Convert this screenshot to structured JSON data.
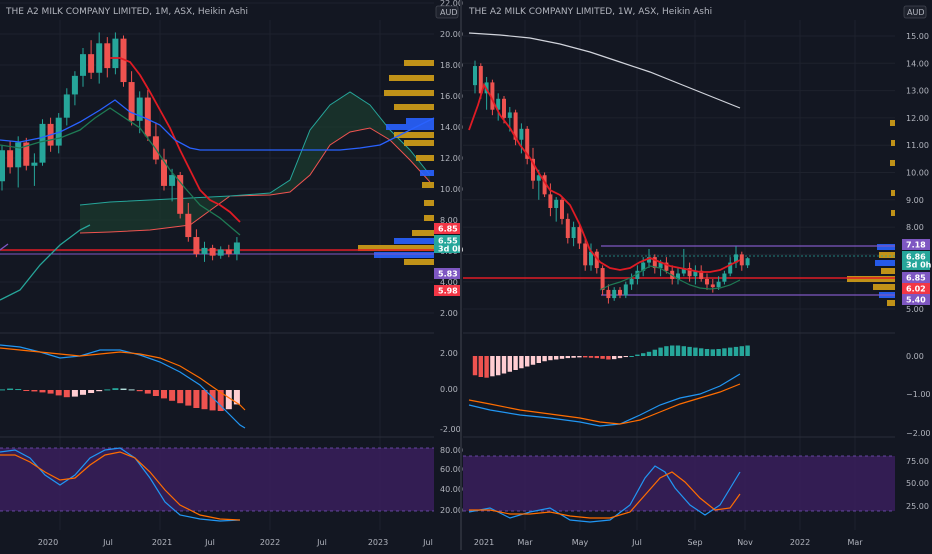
{
  "colors": {
    "bg": "#131722",
    "grid": "#1e222d",
    "axis_text": "#b2b5be",
    "bull": "#26a69a",
    "bear": "#ef5350",
    "red_line": "#e01b24",
    "purple": "#7e57c2",
    "gold": "#d4a017",
    "blue_vp": "#2962ff",
    "osc_band": "#3a1e5c",
    "macd": "#2196f3",
    "signal": "#ff6d00"
  },
  "left": {
    "title": "THE A2 MILK COMPANY LIMITED, 1M, ASX, Heikin Ashi",
    "currency": "AUD",
    "price_ticks": [
      "22.00",
      "20.00",
      "18.00",
      "16.00",
      "14.00",
      "12.00",
      "10.00",
      "8.00",
      "6.00",
      "4.00",
      "2.00"
    ],
    "price_ticks_v": [
      22,
      20,
      18,
      16,
      14,
      12,
      10,
      8,
      6,
      4,
      2
    ],
    "badges": [
      {
        "label": "6.85",
        "value": 6.85,
        "color": "#f23645",
        "sub": ""
      },
      {
        "label": "6.55",
        "value": 6.55,
        "color": "#26a69a",
        "sub": "3d 0h"
      },
      {
        "label": "5.98",
        "value": 5.98,
        "color": "#f23645",
        "sub": ""
      },
      {
        "label": "5.83",
        "value": 5.83,
        "color": "#7e57c2",
        "sub": ""
      }
    ],
    "macd_ticks": [
      "2.00",
      "0.00",
      "-2.00"
    ],
    "rsi_ticks": [
      "80.00",
      "60.00",
      "40.00",
      "20.00"
    ],
    "time_labels": [
      "2020",
      "Jul",
      "2021",
      "Jul",
      "2022",
      "Jul",
      "2023",
      "Jul"
    ]
  },
  "right": {
    "title": "THE A2 MILK COMPANY LIMITED, 1W, ASX, Heikin Ashi",
    "currency": "AUD",
    "price_ticks": [
      "15.00",
      "14.00",
      "13.00",
      "12.00",
      "11.00",
      "10.00",
      "9.00",
      "8.00",
      "7.00",
      "6.00",
      "5.00"
    ],
    "price_ticks_v": [
      15,
      14,
      13,
      12,
      11,
      10,
      9,
      8,
      7,
      6,
      5
    ],
    "badges": [
      {
        "label": "7.18",
        "value": 7.18,
        "color": "#7e57c2",
        "sub": ""
      },
      {
        "label": "6.86",
        "value": 6.86,
        "color": "#26a69a",
        "sub": "3d 0h"
      },
      {
        "label": "6.85",
        "value": 6.85,
        "color": "#7e57c2",
        "sub": ""
      },
      {
        "label": "6.02",
        "value": 6.02,
        "color": "#f23645",
        "sub": ""
      },
      {
        "label": "5.40",
        "value": 5.4,
        "color": "#7e57c2",
        "sub": ""
      }
    ],
    "macd_ticks": [
      "0.00",
      "−1.00",
      "−2.00"
    ],
    "rsi_ticks": [
      "75.00",
      "50.00",
      "25.00"
    ],
    "time_labels": [
      "2021",
      "Mar",
      "May",
      "Jul",
      "Sep",
      "Nov",
      "2022",
      "Mar"
    ]
  },
  "left_candles": [
    [
      10.5,
      12.8,
      9.9,
      12.5
    ],
    [
      12.5,
      13.1,
      11.0,
      11.4
    ],
    [
      11.4,
      13.4,
      10.1,
      13.0
    ],
    [
      13.0,
      13.3,
      11.2,
      11.5
    ],
    [
      11.5,
      12.3,
      10.2,
      11.7
    ],
    [
      11.7,
      14.5,
      11.5,
      14.2
    ],
    [
      14.2,
      14.6,
      12.4,
      12.8
    ],
    [
      12.8,
      14.9,
      12.3,
      14.6
    ],
    [
      14.6,
      16.5,
      14.1,
      16.1
    ],
    [
      16.1,
      17.6,
      15.4,
      17.3
    ],
    [
      17.3,
      19.1,
      16.6,
      18.7
    ],
    [
      18.7,
      19.6,
      17.1,
      17.5
    ],
    [
      17.5,
      20.1,
      16.8,
      19.4
    ],
    [
      19.4,
      19.8,
      17.2,
      17.8
    ],
    [
      17.8,
      20.1,
      17.4,
      19.7
    ],
    [
      19.7,
      19.9,
      16.6,
      16.9
    ],
    [
      16.9,
      17.6,
      14.1,
      14.4
    ],
    [
      14.4,
      16.3,
      13.6,
      15.9
    ],
    [
      15.9,
      16.4,
      13.1,
      13.4
    ],
    [
      13.4,
      14.3,
      11.6,
      11.9
    ],
    [
      11.9,
      12.6,
      9.9,
      10.2
    ],
    [
      10.2,
      11.3,
      9.2,
      10.9
    ],
    [
      10.9,
      11.1,
      8.1,
      8.4
    ],
    [
      8.4,
      9.1,
      6.6,
      6.9
    ],
    [
      6.9,
      7.4,
      5.6,
      5.8
    ],
    [
      5.8,
      6.6,
      5.3,
      6.2
    ],
    [
      6.2,
      6.4,
      5.4,
      5.7
    ],
    [
      5.7,
      6.3,
      5.5,
      6.1
    ],
    [
      6.1,
      6.4,
      5.6,
      5.8
    ],
    [
      5.8,
      6.9,
      5.4,
      6.55
    ]
  ],
  "right_candles": [
    [
      13.2,
      14.1,
      12.9,
      13.9
    ],
    [
      13.9,
      14.0,
      12.7,
      12.9
    ],
    [
      12.9,
      13.5,
      12.3,
      13.3
    ],
    [
      13.3,
      13.4,
      12.1,
      12.3
    ],
    [
      12.3,
      12.9,
      11.9,
      12.7
    ],
    [
      12.7,
      12.8,
      11.8,
      12.0
    ],
    [
      12.0,
      12.4,
      11.5,
      12.2
    ],
    [
      12.2,
      12.3,
      11.0,
      11.2
    ],
    [
      11.2,
      11.8,
      10.7,
      11.6
    ],
    [
      11.6,
      11.7,
      10.3,
      10.5
    ],
    [
      10.5,
      10.9,
      9.4,
      9.7
    ],
    [
      9.7,
      10.1,
      9.0,
      9.9
    ],
    [
      9.9,
      10.0,
      9.1,
      9.2
    ],
    [
      9.2,
      9.6,
      8.4,
      8.7
    ],
    [
      8.7,
      9.1,
      8.2,
      9.0
    ],
    [
      9.0,
      9.1,
      8.1,
      8.3
    ],
    [
      8.3,
      8.5,
      7.4,
      7.6
    ],
    [
      7.6,
      8.2,
      7.3,
      8.0
    ],
    [
      8.0,
      8.1,
      7.2,
      7.4
    ],
    [
      7.4,
      7.6,
      6.4,
      6.6
    ],
    [
      6.6,
      7.4,
      6.4,
      7.1
    ],
    [
      7.1,
      7.2,
      6.3,
      6.5
    ],
    [
      6.5,
      6.6,
      5.5,
      5.7
    ],
    [
      5.7,
      5.9,
      5.2,
      5.4
    ],
    [
      5.4,
      5.8,
      5.3,
      5.7
    ],
    [
      5.7,
      5.8,
      5.4,
      5.5
    ],
    [
      5.5,
      6.0,
      5.4,
      5.9
    ],
    [
      5.9,
      6.3,
      5.7,
      6.1
    ],
    [
      6.1,
      6.6,
      5.9,
      6.4
    ],
    [
      6.4,
      6.9,
      6.2,
      6.7
    ],
    [
      6.7,
      7.2,
      6.5,
      6.9
    ],
    [
      6.9,
      7.0,
      6.3,
      6.5
    ],
    [
      6.5,
      6.8,
      6.2,
      6.7
    ],
    [
      6.7,
      6.9,
      6.3,
      6.4
    ],
    [
      6.4,
      6.6,
      5.9,
      6.1
    ],
    [
      6.1,
      6.5,
      5.9,
      6.3
    ],
    [
      6.3,
      7.2,
      6.2,
      6.5
    ],
    [
      6.5,
      6.7,
      6.0,
      6.2
    ],
    [
      6.2,
      6.6,
      5.9,
      6.4
    ],
    [
      6.4,
      6.6,
      6.0,
      6.1
    ],
    [
      6.1,
      6.3,
      5.7,
      5.9
    ],
    [
      5.9,
      6.1,
      5.6,
      5.8
    ],
    [
      5.8,
      6.2,
      5.7,
      6.0
    ],
    [
      6.0,
      6.4,
      5.9,
      6.3
    ],
    [
      6.3,
      6.9,
      6.2,
      6.7
    ],
    [
      6.7,
      7.3,
      6.5,
      7.0
    ],
    [
      7.0,
      7.1,
      6.4,
      6.6
    ],
    [
      6.6,
      6.9,
      6.5,
      6.86
    ]
  ],
  "left_macd_hist": [
    0.05,
    0.12,
    0.08,
    -0.05,
    -0.12,
    -0.2,
    -0.3,
    -0.45,
    -0.6,
    -0.55,
    -0.4,
    -0.25,
    -0.1,
    0.05,
    0.15,
    0.12,
    0.05,
    -0.1,
    -0.3,
    -0.5,
    -0.7,
    -0.9,
    -1.1,
    -1.3,
    -1.5,
    -1.6,
    -1.7,
    -1.75,
    -1.6,
    -1.2
  ],
  "right_macd_hist": [
    -0.55,
    -0.6,
    -0.62,
    -0.58,
    -0.55,
    -0.5,
    -0.45,
    -0.4,
    -0.35,
    -0.3,
    -0.25,
    -0.2,
    -0.15,
    -0.12,
    -0.1,
    -0.08,
    -0.06,
    -0.05,
    -0.04,
    -0.04,
    -0.05,
    -0.06,
    -0.08,
    -0.1,
    -0.09,
    -0.06,
    -0.03,
    0.0,
    0.04,
    0.08,
    0.12,
    0.18,
    0.24,
    0.28,
    0.3,
    0.3,
    0.28,
    0.26,
    0.24,
    0.22,
    0.2,
    0.19,
    0.2,
    0.22,
    0.24,
    0.26,
    0.28,
    0.3
  ]
}
